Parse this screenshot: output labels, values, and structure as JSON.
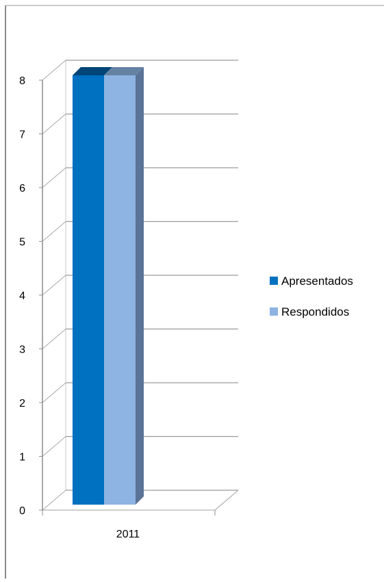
{
  "chart_data": {
    "type": "bar",
    "style": "3d-clustered-column",
    "title": "",
    "xlabel": "",
    "ylabel": "",
    "categories": [
      "2011"
    ],
    "series": [
      {
        "name": "Apresentados",
        "values": [
          8
        ],
        "color": "#0070C0"
      },
      {
        "name": "Respondidos",
        "values": [
          8
        ],
        "color": "#8DB4E2"
      }
    ],
    "yticks": [
      "0",
      "1",
      "2",
      "3",
      "4",
      "5",
      "6",
      "7",
      "8"
    ],
    "ylim": [
      0,
      8
    ],
    "grid": true,
    "legend_position": "right"
  }
}
